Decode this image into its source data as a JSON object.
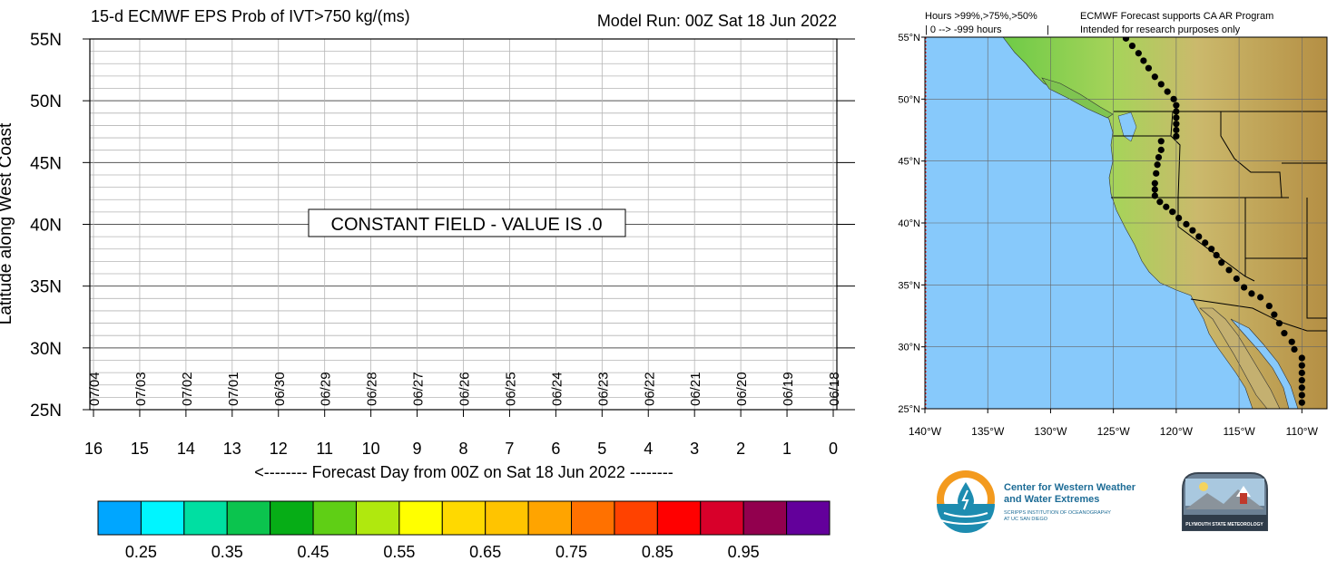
{
  "header": {
    "title": "15-d ECMWF EPS Prob of IVT>750 kg/(ms)",
    "model_run": "Model Run: 00Z Sat 18 Jun 2022"
  },
  "chart_data": [
    {
      "type": "heatmap",
      "title": "15-d ECMWF EPS Prob of IVT>750 kg/(ms)",
      "ylabel": "Latitude along West Coast",
      "xlabel": "<-------- Forecast Day from 00Z on Sat 18 Jun 2022 --------",
      "ylim": [
        25,
        55
      ],
      "y_ticks": [
        "25N",
        "30N",
        "35N",
        "40N",
        "45N",
        "50N",
        "55N"
      ],
      "x_ticks": [
        "16",
        "15",
        "14",
        "13",
        "12",
        "11",
        "10",
        "9",
        "8",
        "7",
        "6",
        "5",
        "4",
        "3",
        "2",
        "1",
        "0"
      ],
      "date_labels": [
        "07/04",
        "07/03",
        "07/02",
        "07/01",
        "06/30",
        "06/29",
        "06/28",
        "06/27",
        "06/26",
        "06/25",
        "06/24",
        "06/23",
        "06/22",
        "06/21",
        "06/20",
        "06/19",
        "06/18"
      ],
      "annotation": "CONSTANT FIELD - VALUE IS .0",
      "value": 0.0,
      "grid": true
    },
    {
      "type": "scatter",
      "xlim": [
        -140,
        -108
      ],
      "ylim": [
        25,
        55
      ],
      "x_ticks": [
        "140°W",
        "135°W",
        "130°W",
        "125°W",
        "120°W",
        "115°W",
        "110°W"
      ],
      "y_ticks": [
        "25°N",
        "30°N",
        "35°N",
        "40°N",
        "45°N",
        "50°N",
        "55°N"
      ],
      "points": [
        [
          -110.0,
          25.5
        ],
        [
          -110.0,
          26.1
        ],
        [
          -110.0,
          26.7
        ],
        [
          -110.0,
          27.3
        ],
        [
          -110.0,
          27.9
        ],
        [
          -110.0,
          28.5
        ],
        [
          -110.0,
          29.1
        ],
        [
          -110.6,
          29.8
        ],
        [
          -110.8,
          30.4
        ],
        [
          -111.4,
          31.1
        ],
        [
          -111.8,
          31.9
        ],
        [
          -112.2,
          32.6
        ],
        [
          -112.6,
          33.3
        ],
        [
          -113.3,
          34.0
        ],
        [
          -114.0,
          34.3
        ],
        [
          -114.6,
          34.8
        ],
        [
          -115.2,
          35.5
        ],
        [
          -115.8,
          36.2
        ],
        [
          -116.4,
          36.8
        ],
        [
          -116.8,
          37.4
        ],
        [
          -117.2,
          37.9
        ],
        [
          -117.7,
          38.4
        ],
        [
          -118.2,
          38.9
        ],
        [
          -118.7,
          39.4
        ],
        [
          -119.2,
          39.9
        ],
        [
          -119.8,
          40.4
        ],
        [
          -120.3,
          40.9
        ],
        [
          -120.8,
          41.3
        ],
        [
          -121.3,
          41.7
        ],
        [
          -121.7,
          42.2
        ],
        [
          -121.7,
          42.7
        ],
        [
          -121.7,
          43.2
        ],
        [
          -121.6,
          44.0
        ],
        [
          -121.5,
          44.7
        ],
        [
          -121.4,
          45.3
        ],
        [
          -121.2,
          45.9
        ],
        [
          -121.2,
          46.6
        ],
        [
          -120.0,
          47.0
        ],
        [
          -120.0,
          47.5
        ],
        [
          -120.0,
          48.0
        ],
        [
          -120.0,
          48.5
        ],
        [
          -120.0,
          49.0
        ],
        [
          -120.0,
          49.5
        ],
        [
          -120.2,
          50.0
        ],
        [
          -120.7,
          50.6
        ],
        [
          -121.2,
          51.2
        ],
        [
          -121.7,
          51.8
        ],
        [
          -122.2,
          52.5
        ],
        [
          -122.6,
          53.1
        ],
        [
          -123.0,
          53.7
        ],
        [
          -123.5,
          54.3
        ],
        [
          -124.0,
          54.9
        ]
      ],
      "legend_text": "Hours >99%,>75%,>50%",
      "legend_values": "| 0 --> -999 hours",
      "legend_sep": "|"
    }
  ],
  "colorbar": {
    "colors": [
      "#00a6ff",
      "#00f5ff",
      "#00dfa2",
      "#0bc44e",
      "#06ad16",
      "#5fcf15",
      "#b0e80e",
      "#ffff00",
      "#ffd900",
      "#ffc400",
      "#ffa400",
      "#ff7100",
      "#ff4200",
      "#ff0000",
      "#d8002a",
      "#92004e",
      "#63009b"
    ],
    "labels": [
      "0.25",
      "0.35",
      "0.45",
      "0.55",
      "0.65",
      "0.75",
      "0.85",
      "0.95"
    ]
  },
  "credits": {
    "line1": "ECMWF Forecast supports CA AR Program",
    "line2": "Intended for research purposes only"
  },
  "logos": {
    "cw3e_line1": "Center for Western Weather",
    "cw3e_line2": "and Water Extremes",
    "cw3e_sub1": "SCRIPPS INSTITUTION OF OCEANOGRAPHY",
    "cw3e_sub2": "AT UC SAN DIEGO",
    "plymouth": "PLYMOUTH STATE METEOROLOGY"
  },
  "colors": {
    "ocean": "#87c9fb",
    "land_green": "#6ecb47",
    "land_tan": "#c9b872",
    "border": "#000000"
  }
}
